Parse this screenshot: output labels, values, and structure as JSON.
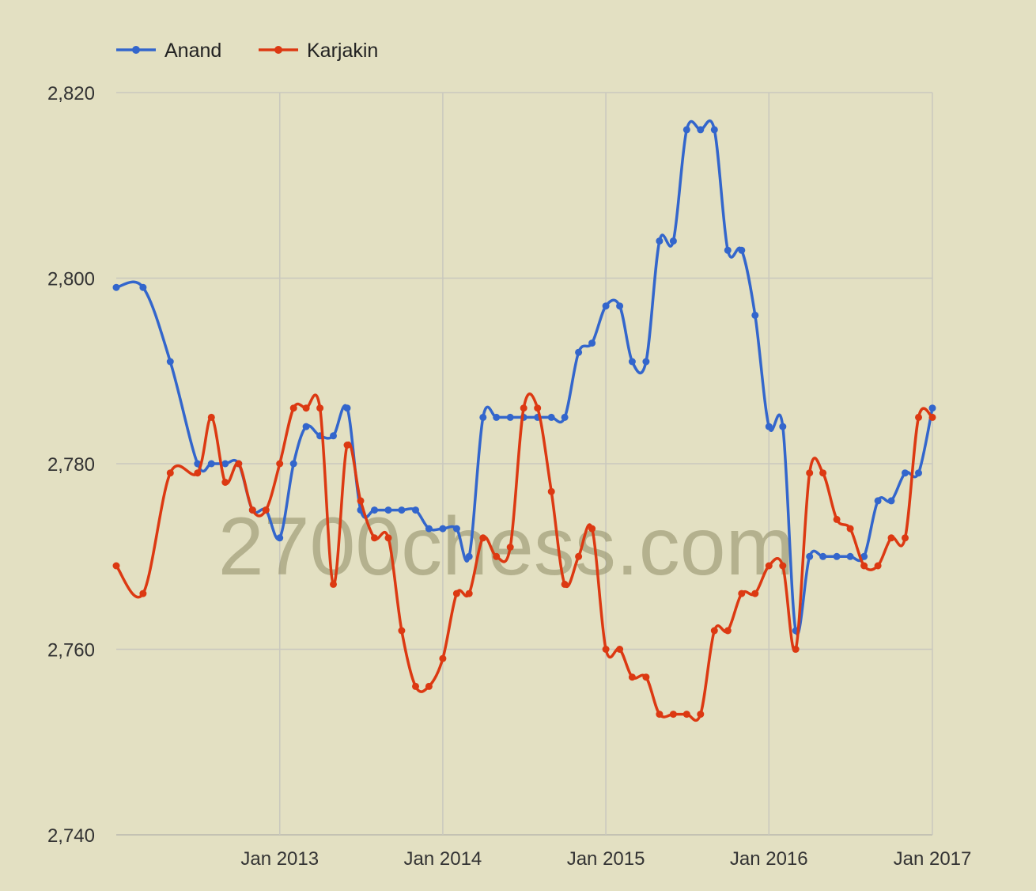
{
  "chart_data": {
    "type": "line",
    "title": "",
    "xlabel": "",
    "ylabel": "",
    "watermark": "2700chess.com",
    "ylim": [
      2740,
      2820
    ],
    "y_ticks": [
      2740,
      2760,
      2780,
      2800,
      2820
    ],
    "y_tick_labels": [
      "2,740",
      "2,760",
      "2,780",
      "2,800",
      "2,820"
    ],
    "x_ticks": [
      "2013-01-01",
      "2014-01-01",
      "2015-01-01",
      "2016-01-01",
      "2017-01-01"
    ],
    "x_tick_labels": [
      "Jan 2013",
      "Jan 2014",
      "Jan 2015",
      "Jan 2016",
      "Jan 2017"
    ],
    "xlim": [
      "2012-01-01",
      "2017-01-01"
    ],
    "grid": true,
    "legend": "top-left",
    "series": [
      {
        "name": "Anand",
        "color": "#3366cc",
        "points": [
          [
            "2012-01-01",
            2799
          ],
          [
            "2012-03-01",
            2799
          ],
          [
            "2012-05-01",
            2791
          ],
          [
            "2012-07-01",
            2780
          ],
          [
            "2012-08-01",
            2780
          ],
          [
            "2012-09-01",
            2780
          ],
          [
            "2012-10-01",
            2780
          ],
          [
            "2012-11-01",
            2775
          ],
          [
            "2012-12-01",
            2775
          ],
          [
            "2013-01-01",
            2772
          ],
          [
            "2013-02-01",
            2780
          ],
          [
            "2013-03-01",
            2784
          ],
          [
            "2013-04-01",
            2783
          ],
          [
            "2013-05-01",
            2783
          ],
          [
            "2013-06-01",
            2786
          ],
          [
            "2013-07-01",
            2775
          ],
          [
            "2013-08-01",
            2775
          ],
          [
            "2013-09-01",
            2775
          ],
          [
            "2013-10-01",
            2775
          ],
          [
            "2013-11-01",
            2775
          ],
          [
            "2013-12-01",
            2773
          ],
          [
            "2014-01-01",
            2773
          ],
          [
            "2014-02-01",
            2773
          ],
          [
            "2014-03-01",
            2770
          ],
          [
            "2014-04-01",
            2785
          ],
          [
            "2014-05-01",
            2785
          ],
          [
            "2014-06-01",
            2785
          ],
          [
            "2014-07-01",
            2785
          ],
          [
            "2014-08-01",
            2785
          ],
          [
            "2014-09-01",
            2785
          ],
          [
            "2014-10-01",
            2785
          ],
          [
            "2014-11-01",
            2792
          ],
          [
            "2014-12-01",
            2793
          ],
          [
            "2015-01-01",
            2797
          ],
          [
            "2015-02-01",
            2797
          ],
          [
            "2015-03-01",
            2791
          ],
          [
            "2015-04-01",
            2791
          ],
          [
            "2015-05-01",
            2804
          ],
          [
            "2015-06-01",
            2804
          ],
          [
            "2015-07-01",
            2816
          ],
          [
            "2015-08-01",
            2816
          ],
          [
            "2015-09-01",
            2816
          ],
          [
            "2015-10-01",
            2803
          ],
          [
            "2015-11-01",
            2803
          ],
          [
            "2015-12-01",
            2796
          ],
          [
            "2016-01-01",
            2784
          ],
          [
            "2016-02-01",
            2784
          ],
          [
            "2016-03-01",
            2762
          ],
          [
            "2016-04-01",
            2770
          ],
          [
            "2016-05-01",
            2770
          ],
          [
            "2016-06-01",
            2770
          ],
          [
            "2016-07-01",
            2770
          ],
          [
            "2016-08-01",
            2770
          ],
          [
            "2016-09-01",
            2776
          ],
          [
            "2016-10-01",
            2776
          ],
          [
            "2016-11-01",
            2779
          ],
          [
            "2016-12-01",
            2779
          ],
          [
            "2017-01-01",
            2786
          ]
        ]
      },
      {
        "name": "Karjakin",
        "color": "#dc3912",
        "points": [
          [
            "2012-01-01",
            2769
          ],
          [
            "2012-03-01",
            2766
          ],
          [
            "2012-05-01",
            2779
          ],
          [
            "2012-07-01",
            2779
          ],
          [
            "2012-08-01",
            2785
          ],
          [
            "2012-09-01",
            2778
          ],
          [
            "2012-10-01",
            2780
          ],
          [
            "2012-11-01",
            2775
          ],
          [
            "2012-12-01",
            2775
          ],
          [
            "2013-01-01",
            2780
          ],
          [
            "2013-02-01",
            2786
          ],
          [
            "2013-03-01",
            2786
          ],
          [
            "2013-04-01",
            2786
          ],
          [
            "2013-05-01",
            2767
          ],
          [
            "2013-06-01",
            2782
          ],
          [
            "2013-07-01",
            2776
          ],
          [
            "2013-08-01",
            2772
          ],
          [
            "2013-09-01",
            2772
          ],
          [
            "2013-10-01",
            2762
          ],
          [
            "2013-11-01",
            2756
          ],
          [
            "2013-12-01",
            2756
          ],
          [
            "2014-01-01",
            2759
          ],
          [
            "2014-02-01",
            2766
          ],
          [
            "2014-03-01",
            2766
          ],
          [
            "2014-04-01",
            2772
          ],
          [
            "2014-05-01",
            2770
          ],
          [
            "2014-06-01",
            2771
          ],
          [
            "2014-07-01",
            2786
          ],
          [
            "2014-08-01",
            2786
          ],
          [
            "2014-09-01",
            2777
          ],
          [
            "2014-10-01",
            2767
          ],
          [
            "2014-11-01",
            2770
          ],
          [
            "2014-12-01",
            2773
          ],
          [
            "2015-01-01",
            2760
          ],
          [
            "2015-02-01",
            2760
          ],
          [
            "2015-03-01",
            2757
          ],
          [
            "2015-04-01",
            2757
          ],
          [
            "2015-05-01",
            2753
          ],
          [
            "2015-06-01",
            2753
          ],
          [
            "2015-07-01",
            2753
          ],
          [
            "2015-08-01",
            2753
          ],
          [
            "2015-09-01",
            2762
          ],
          [
            "2015-10-01",
            2762
          ],
          [
            "2015-11-01",
            2766
          ],
          [
            "2015-12-01",
            2766
          ],
          [
            "2016-01-01",
            2769
          ],
          [
            "2016-02-01",
            2769
          ],
          [
            "2016-03-01",
            2760
          ],
          [
            "2016-04-01",
            2779
          ],
          [
            "2016-05-01",
            2779
          ],
          [
            "2016-06-01",
            2774
          ],
          [
            "2016-07-01",
            2773
          ],
          [
            "2016-08-01",
            2769
          ],
          [
            "2016-09-01",
            2769
          ],
          [
            "2016-10-01",
            2772
          ],
          [
            "2016-11-01",
            2772
          ],
          [
            "2016-12-01",
            2785
          ],
          [
            "2017-01-01",
            2785
          ]
        ]
      }
    ]
  }
}
